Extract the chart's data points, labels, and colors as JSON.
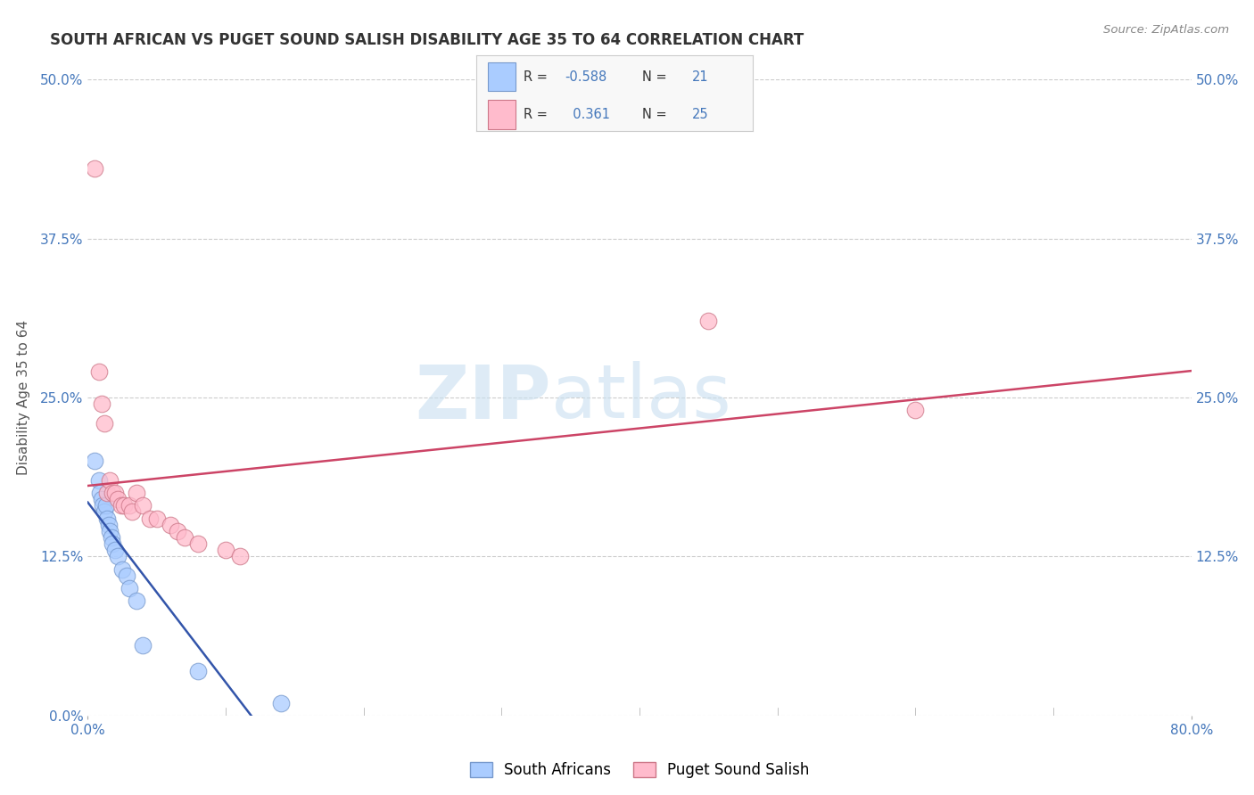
{
  "title": "SOUTH AFRICAN VS PUGET SOUND SALISH DISABILITY AGE 35 TO 64 CORRELATION CHART",
  "source": "Source: ZipAtlas.com",
  "ylabel": "Disability Age 35 to 64",
  "xlim": [
    0.0,
    0.8
  ],
  "ylim": [
    0.0,
    0.5
  ],
  "yticks": [
    0.0,
    0.125,
    0.25,
    0.375,
    0.5
  ],
  "ytick_labels": [
    "0.0%",
    "12.5%",
    "25.0%",
    "37.5%",
    "50.0%"
  ],
  "background_color": "#ffffff",
  "grid_color": "#cccccc",
  "watermark_zip": "ZIP",
  "watermark_atlas": "atlas",
  "series": [
    {
      "name": "South Africans",
      "R": -0.588,
      "N": 21,
      "line_color": "#3355aa",
      "face_color": "#aaccff",
      "edge_color": "#7799cc",
      "x": [
        0.005,
        0.008,
        0.009,
        0.01,
        0.011,
        0.012,
        0.013,
        0.014,
        0.015,
        0.016,
        0.017,
        0.018,
        0.02,
        0.022,
        0.025,
        0.028,
        0.03,
        0.035,
        0.04,
        0.08,
        0.14
      ],
      "y": [
        0.2,
        0.185,
        0.175,
        0.17,
        0.165,
        0.16,
        0.165,
        0.155,
        0.15,
        0.145,
        0.14,
        0.135,
        0.13,
        0.125,
        0.115,
        0.11,
        0.1,
        0.09,
        0.055,
        0.035,
        0.01
      ]
    },
    {
      "name": "Puget Sound Salish",
      "R": 0.361,
      "N": 25,
      "line_color": "#cc4466",
      "face_color": "#ffbbcc",
      "edge_color": "#cc7788",
      "x": [
        0.005,
        0.008,
        0.01,
        0.012,
        0.014,
        0.016,
        0.018,
        0.02,
        0.022,
        0.024,
        0.026,
        0.03,
        0.032,
        0.035,
        0.04,
        0.045,
        0.05,
        0.06,
        0.065,
        0.07,
        0.08,
        0.1,
        0.11,
        0.45,
        0.6
      ],
      "y": [
        0.43,
        0.27,
        0.245,
        0.23,
        0.175,
        0.185,
        0.175,
        0.175,
        0.17,
        0.165,
        0.165,
        0.165,
        0.16,
        0.175,
        0.165,
        0.155,
        0.155,
        0.15,
        0.145,
        0.14,
        0.135,
        0.13,
        0.125,
        0.31,
        0.24
      ]
    }
  ],
  "title_color": "#333333",
  "axis_label_color": "#555555",
  "tick_color": "#4477bb",
  "legend_text_color": "#333333",
  "legend_R_color": "#4477bb",
  "legend_R_val_color": "#4477bb",
  "legend_N_color": "#333333",
  "legend_N_val_color": "#4477bb"
}
